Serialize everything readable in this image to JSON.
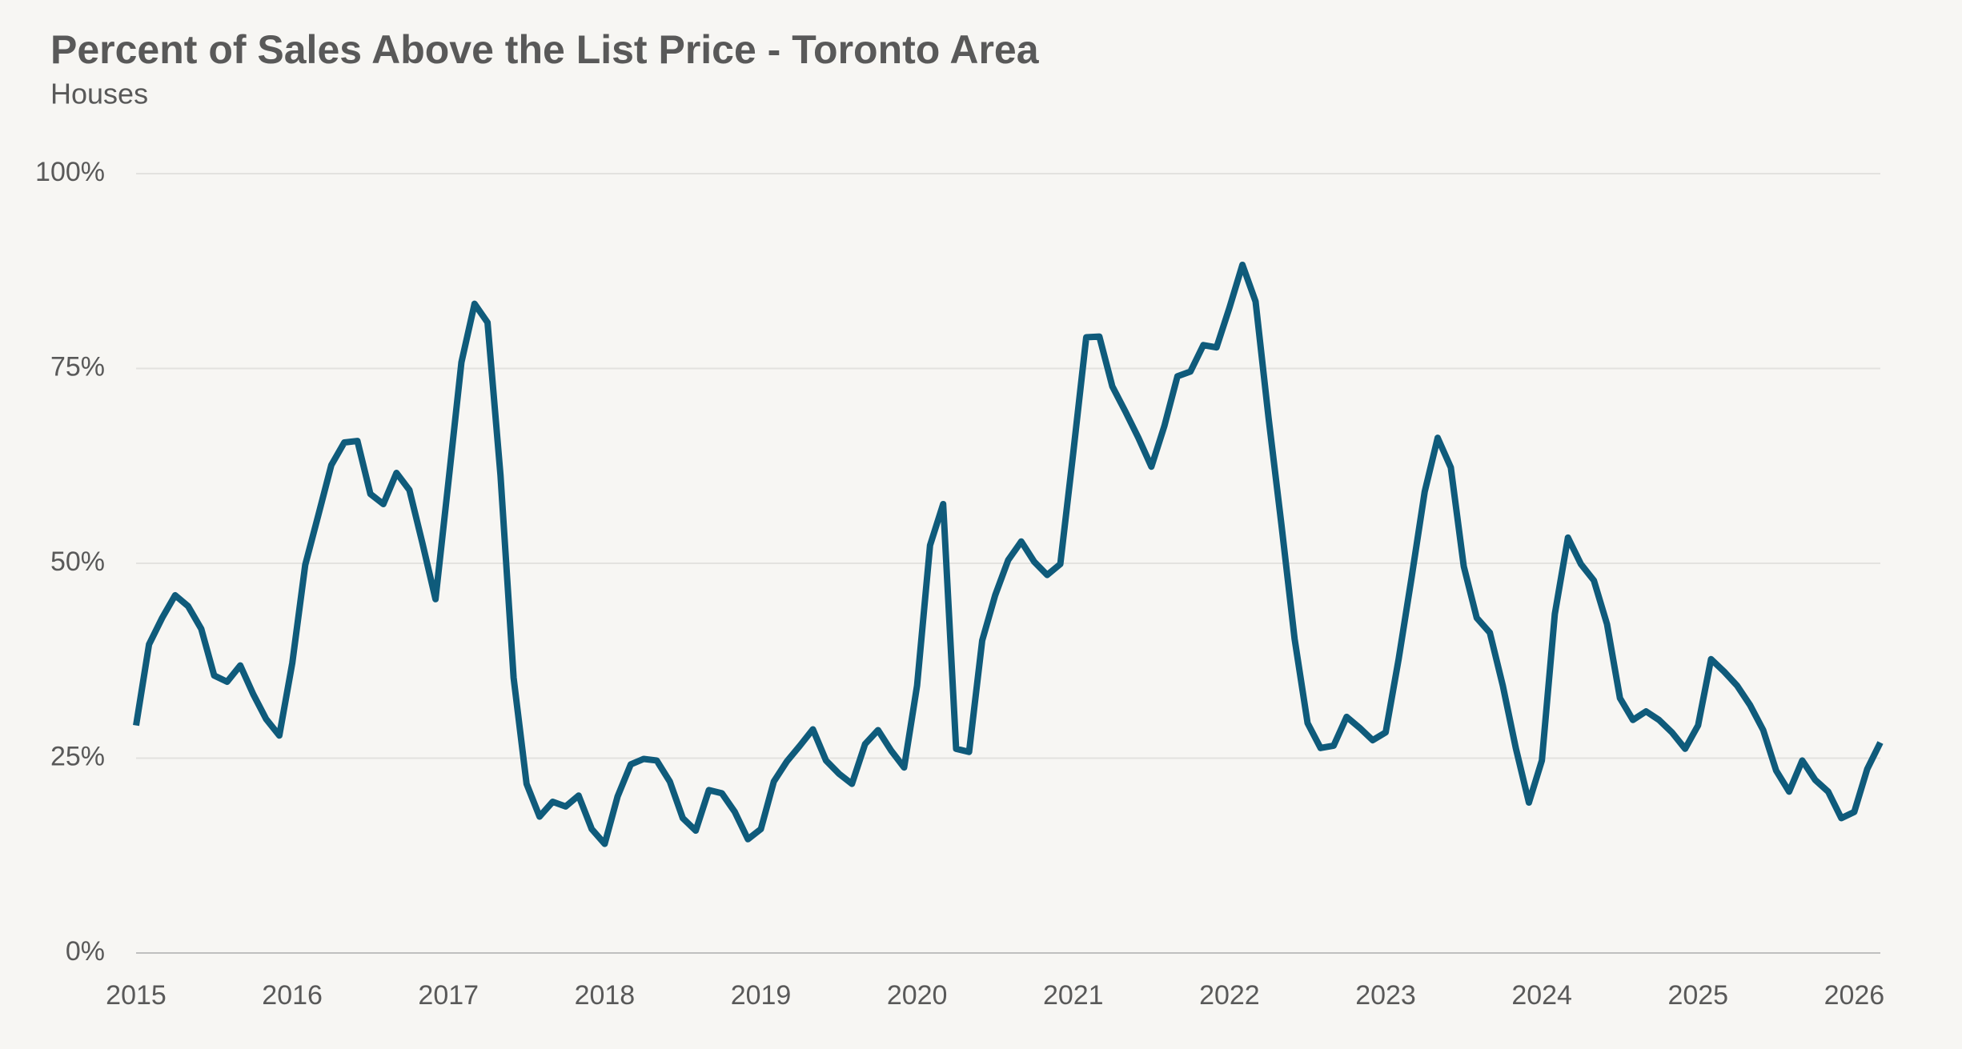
{
  "chart_data": {
    "type": "line",
    "title": "Percent of Sales Above the List Price - Toronto Area",
    "subtitle": "Houses",
    "x": [
      2015.0,
      2015.083,
      2015.167,
      2015.25,
      2015.333,
      2015.417,
      2015.5,
      2015.583,
      2015.667,
      2015.75,
      2015.833,
      2015.917,
      2016.0,
      2016.083,
      2016.167,
      2016.25,
      2016.333,
      2016.417,
      2016.5,
      2016.583,
      2016.667,
      2016.75,
      2016.833,
      2016.917,
      2017.0,
      2017.083,
      2017.167,
      2017.25,
      2017.333,
      2017.417,
      2017.5,
      2017.583,
      2017.667,
      2017.75,
      2017.833,
      2017.917,
      2018.0,
      2018.083,
      2018.167,
      2018.25,
      2018.333,
      2018.417,
      2018.5,
      2018.583,
      2018.667,
      2018.75,
      2018.833,
      2018.917,
      2019.0,
      2019.083,
      2019.167,
      2019.25,
      2019.333,
      2019.417,
      2019.5,
      2019.583,
      2019.667,
      2019.75,
      2019.833,
      2019.917,
      2020.0,
      2020.083,
      2020.167,
      2020.25,
      2020.333,
      2020.417,
      2020.5,
      2020.583,
      2020.667,
      2020.75,
      2020.833,
      2020.917,
      2021.0,
      2021.083,
      2021.167,
      2021.25,
      2021.333,
      2021.417,
      2021.5,
      2021.583,
      2021.667,
      2021.75,
      2021.833,
      2021.917,
      2022.0,
      2022.083,
      2022.167,
      2022.25,
      2022.333,
      2022.417,
      2022.5,
      2022.583,
      2022.667,
      2022.75,
      2022.833,
      2022.917,
      2023.0,
      2023.083,
      2023.167,
      2023.25,
      2023.333,
      2023.417,
      2023.5,
      2023.583,
      2023.667,
      2023.75,
      2023.833,
      2023.917,
      2024.0,
      2024.083,
      2024.167,
      2024.25,
      2024.333,
      2024.417,
      2024.5,
      2024.583,
      2024.667,
      2024.75,
      2024.833,
      2024.917,
      2025.0,
      2025.083,
      2025.167,
      2025.25,
      2025.333,
      2025.417,
      2025.5,
      2025.583,
      2025.667,
      2025.75,
      2025.833,
      2025.917,
      2026.0,
      2026.083,
      2026.167
    ],
    "series": [
      {
        "name": "Houses",
        "color": "#0f5b7b",
        "values": [
          29.2,
          39.6,
          43,
          45.9,
          44.5,
          41.6,
          35.6,
          34.8,
          36.9,
          33.2,
          30,
          27.9,
          37.2,
          49.8,
          56.2,
          62.6,
          65.5,
          65.7,
          58.9,
          57.6,
          61.6,
          59.4,
          52.6,
          45.4,
          60.5,
          75.8,
          83.3,
          80.9,
          61.3,
          35.3,
          21.7,
          17.5,
          19.4,
          18.8,
          20.2,
          15.9,
          14,
          20.1,
          24.2,
          24.9,
          24.7,
          22,
          17.3,
          15.7,
          20.9,
          20.5,
          18.1,
          14.6,
          15.9,
          22,
          24.6,
          26.6,
          28.7,
          24.7,
          23,
          21.7,
          26.8,
          28.6,
          26,
          23.8,
          34.3,
          52.3,
          57.6,
          26.2,
          25.8,
          40.1,
          45.9,
          50.4,
          52.8,
          50.2,
          48.5,
          49.9,
          64.2,
          79,
          79.1,
          72.7,
          69.5,
          66.1,
          62.4,
          67.6,
          74,
          74.6,
          78,
          77.7,
          82.8,
          88.3,
          83.6,
          68.7,
          54.9,
          40.3,
          29.5,
          26.3,
          26.6,
          30.3,
          28.9,
          27.3,
          28.3,
          37.7,
          48.3,
          59.2,
          66.1,
          62.3,
          49.6,
          43,
          41.1,
          34.3,
          26.3,
          19.3,
          24.7,
          43.5,
          53.3,
          49.9,
          47.8,
          42.2,
          32.7,
          29.9,
          31,
          29.9,
          28.3,
          26.2,
          29.2,
          37.7,
          36.1,
          34.3,
          31.8,
          28.6,
          23.4,
          20.7,
          24.7,
          22.2,
          20.7,
          17.3,
          18.1,
          23.6,
          27
        ]
      }
    ],
    "xlim": [
      2015,
      2026.167
    ],
    "xticks": [
      2015,
      2016,
      2017,
      2018,
      2019,
      2020,
      2021,
      2022,
      2023,
      2024,
      2025,
      2026
    ],
    "ylim": [
      0,
      100
    ],
    "yticks": [
      {
        "value": 0,
        "label": "0%"
      },
      {
        "value": 25,
        "label": "25%"
      },
      {
        "value": 50,
        "label": "50%"
      },
      {
        "value": 75,
        "label": "75%"
      },
      {
        "value": 100,
        "label": "100%"
      }
    ],
    "grid": true
  }
}
